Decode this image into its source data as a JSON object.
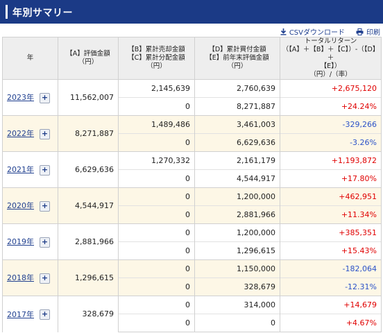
{
  "header": {
    "title": "年別サマリー"
  },
  "tools": {
    "csv_label": "CSVダウンロード",
    "print_label": "印刷",
    "csv_icon": "download-icon",
    "print_icon": "printer-icon"
  },
  "table": {
    "headers": {
      "year": "年",
      "a": [
        "【A】評価金額",
        "（円）"
      ],
      "bc": [
        "【B】累計売却金額",
        "【C】累計分配金額",
        "（円）"
      ],
      "de": [
        "【D】累計買付金額",
        "【E】前年末評価金額",
        "（円）"
      ],
      "ret": [
        "トータルリターン",
        "（【A】＋【B】＋【C】）-（【D】＋",
        "【E】）",
        "（円）/（率）"
      ]
    },
    "rows": [
      {
        "year": "2023年",
        "a": "11,562,007",
        "b": "2,145,639",
        "c": "0",
        "d": "2,760,639",
        "e": "8,271,887",
        "ret_yen": "+2,675,120",
        "ret_pct": "+24.24%"
      },
      {
        "year": "2022年",
        "a": "8,271,887",
        "b": "1,489,486",
        "c": "0",
        "d": "3,461,003",
        "e": "6,629,636",
        "ret_yen": "-329,266",
        "ret_pct": "-3.26%"
      },
      {
        "year": "2021年",
        "a": "6,629,636",
        "b": "1,270,332",
        "c": "0",
        "d": "2,161,179",
        "e": "4,544,917",
        "ret_yen": "+1,193,872",
        "ret_pct": "+17.80%"
      },
      {
        "year": "2020年",
        "a": "4,544,917",
        "b": "0",
        "c": "0",
        "d": "1,200,000",
        "e": "2,881,966",
        "ret_yen": "+462,951",
        "ret_pct": "+11.34%"
      },
      {
        "year": "2019年",
        "a": "2,881,966",
        "b": "0",
        "c": "0",
        "d": "1,200,000",
        "e": "1,296,615",
        "ret_yen": "+385,351",
        "ret_pct": "+15.43%"
      },
      {
        "year": "2018年",
        "a": "1,296,615",
        "b": "0",
        "c": "0",
        "d": "1,150,000",
        "e": "328,679",
        "ret_yen": "-182,064",
        "ret_pct": "-12.31%"
      },
      {
        "year": "2017年",
        "a": "328,679",
        "b": "0",
        "c": "0",
        "d": "314,000",
        "e": "0",
        "ret_yen": "+14,679",
        "ret_pct": "+4.67%"
      }
    ]
  },
  "colors": {
    "header_bg": "#1b3a86",
    "positive": "#e00000",
    "negative": "#2b52c8",
    "row_alt": "#fdf7e6"
  }
}
